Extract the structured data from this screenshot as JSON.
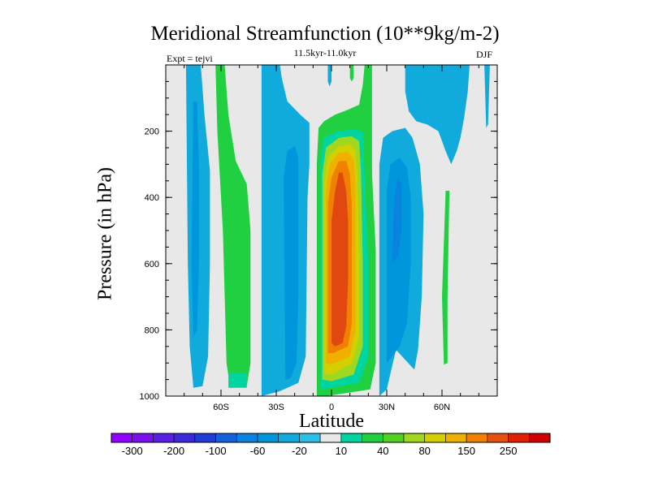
{
  "chart_data": {
    "type": "contour",
    "title": "Meridional Streamfunction (10**9kg/m-2)",
    "subtitle": "11.5kyr-11.0kyr",
    "left_label": "Expt = tejvi",
    "right_label": "DJF",
    "xlabel": "Latitude",
    "ylabel": "Pressure (in hPa)",
    "xlim": [
      -90,
      90
    ],
    "ylim": [
      1000,
      0
    ],
    "xticks": [
      {
        "value": -60,
        "label": "60S"
      },
      {
        "value": -30,
        "label": "30S"
      },
      {
        "value": 0,
        "label": "0"
      },
      {
        "value": 30,
        "label": "30N"
      },
      {
        "value": 60,
        "label": "60N"
      }
    ],
    "yticks": [
      {
        "value": 200,
        "label": "200"
      },
      {
        "value": 400,
        "label": "400"
      },
      {
        "value": 600,
        "label": "600"
      },
      {
        "value": 800,
        "label": "800"
      },
      {
        "value": 1000,
        "label": "1000"
      }
    ],
    "colorbar": {
      "levels": [
        -300,
        -250,
        -200,
        -150,
        -100,
        -80,
        -60,
        -40,
        -20,
        -10,
        10,
        20,
        40,
        60,
        80,
        100,
        150,
        200,
        250,
        300
      ],
      "labels": [
        "-300",
        "-200",
        "-100",
        "-60",
        "-20",
        "10",
        "40",
        "80",
        "150",
        "250"
      ],
      "colors": [
        "#9400ff",
        "#7a10f0",
        "#5a1fe6",
        "#3c28dc",
        "#1e3cd8",
        "#1560dc",
        "#0a82e0",
        "#0096dc",
        "#10aadc",
        "#2cc0e8",
        "#e8e8e8",
        "#00d4a0",
        "#20d040",
        "#50d020",
        "#a0d820",
        "#d4d000",
        "#f0b000",
        "#f08000",
        "#e85010",
        "#e02000",
        "#d00000"
      ]
    },
    "regions": [
      {
        "name": "cell-northern-positive-outer",
        "level": 10,
        "color": "#20d040",
        "points": [
          [
            -8,
            1000
          ],
          [
            -8,
            300
          ],
          [
            -7,
            190
          ],
          [
            -4,
            170
          ],
          [
            2,
            150
          ],
          [
            9,
            135
          ],
          [
            15,
            120
          ],
          [
            17,
            60
          ],
          [
            18,
            0
          ],
          [
            22,
            0
          ],
          [
            22,
            200
          ],
          [
            22,
            330
          ],
          [
            24,
            560
          ],
          [
            24,
            900
          ],
          [
            21,
            980
          ],
          [
            -3,
            1000
          ]
        ]
      },
      {
        "name": "cell-northern-positive-20",
        "level": 20,
        "color": "#00d4a0",
        "points": [
          [
            -6,
            980
          ],
          [
            -6,
            280
          ],
          [
            -4,
            220
          ],
          [
            3,
            200
          ],
          [
            12,
            195
          ],
          [
            17,
            200
          ],
          [
            18,
            330
          ],
          [
            20,
            600
          ],
          [
            20,
            880
          ],
          [
            15,
            960
          ],
          [
            0,
            975
          ]
        ]
      },
      {
        "name": "cell-northern-positive-40",
        "level": 40,
        "color": "#a0d820",
        "points": [
          [
            -5,
            950
          ],
          [
            -5,
            330
          ],
          [
            -3,
            250
          ],
          [
            4,
            220
          ],
          [
            11,
            215
          ],
          [
            15,
            230
          ],
          [
            16,
            320
          ],
          [
            17,
            600
          ],
          [
            17,
            850
          ],
          [
            12,
            935
          ],
          [
            0,
            955
          ]
        ]
      },
      {
        "name": "cell-northern-positive-80",
        "level": 80,
        "color": "#d4d000",
        "points": [
          [
            -4,
            930
          ],
          [
            -4,
            360
          ],
          [
            -2,
            280
          ],
          [
            4,
            245
          ],
          [
            10,
            240
          ],
          [
            13,
            260
          ],
          [
            14,
            330
          ],
          [
            15,
            600
          ],
          [
            15,
            820
          ],
          [
            11,
            900
          ],
          [
            0,
            935
          ]
        ]
      },
      {
        "name": "cell-northern-positive-100",
        "level": 100,
        "color": "#f0b000",
        "points": [
          [
            -3,
            900
          ],
          [
            -3,
            380
          ],
          [
            -1,
            300
          ],
          [
            4,
            265
          ],
          [
            9,
            262
          ],
          [
            12,
            285
          ],
          [
            13,
            360
          ],
          [
            13,
            600
          ],
          [
            13,
            800
          ],
          [
            10,
            880
          ],
          [
            0,
            905
          ]
        ]
      },
      {
        "name": "cell-northern-positive-150",
        "level": 150,
        "color": "#f08000",
        "points": [
          [
            -2,
            870
          ],
          [
            -2,
            420
          ],
          [
            0,
            340
          ],
          [
            4,
            290
          ],
          [
            8,
            290
          ],
          [
            10,
            330
          ],
          [
            11,
            420
          ],
          [
            11,
            600
          ],
          [
            11,
            780
          ],
          [
            9,
            850
          ],
          [
            1,
            870
          ]
        ]
      },
      {
        "name": "cell-northern-positive-250",
        "level": 250,
        "color": "#e04810",
        "points": [
          [
            0,
            840
          ],
          [
            0,
            470
          ],
          [
            2,
            380
          ],
          [
            4,
            325
          ],
          [
            6,
            325
          ],
          [
            8,
            380
          ],
          [
            9,
            470
          ],
          [
            9,
            650
          ],
          [
            8,
            790
          ],
          [
            6,
            840
          ],
          [
            2,
            850
          ]
        ]
      },
      {
        "name": "cell-southern-negative-10",
        "level": -10,
        "color": "#10aadc",
        "points": [
          [
            -38,
            1000
          ],
          [
            -38,
            0
          ],
          [
            -28,
            0
          ],
          [
            -27,
            40
          ],
          [
            -24,
            110
          ],
          [
            -17,
            150
          ],
          [
            -12,
            175
          ],
          [
            -12,
            300
          ],
          [
            -13,
            400
          ],
          [
            -14,
            880
          ],
          [
            -18,
            960
          ],
          [
            -28,
            985
          ]
        ]
      },
      {
        "name": "cell-southern-negative-20",
        "level": -20,
        "color": "#0096dc",
        "points": [
          [
            -25,
            950
          ],
          [
            -26,
            340
          ],
          [
            -24,
            260
          ],
          [
            -20,
            245
          ],
          [
            -18,
            280
          ],
          [
            -18,
            700
          ],
          [
            -19,
            900
          ],
          [
            -22,
            945
          ]
        ]
      },
      {
        "name": "cell-high-south-negative",
        "level": -10,
        "color": "#10aadc",
        "points": [
          [
            -79,
            0
          ],
          [
            -71,
            0
          ],
          [
            -69,
            150
          ],
          [
            -66,
            320
          ],
          [
            -66,
            600
          ],
          [
            -67,
            880
          ],
          [
            -70,
            970
          ],
          [
            -75,
            975
          ],
          [
            -77,
            850
          ],
          [
            -78,
            600
          ]
        ]
      },
      {
        "name": "cell-high-south-negative-core",
        "level": -20,
        "color": "#0096dc",
        "points": [
          [
            -75,
            110
          ],
          [
            -73,
            110
          ],
          [
            -72,
            300
          ],
          [
            -72,
            600
          ],
          [
            -73,
            800
          ],
          [
            -75,
            820
          ],
          [
            -76,
            600
          ]
        ]
      },
      {
        "name": "cell-southern-positive",
        "level": 10,
        "color": "#20d040",
        "points": [
          [
            -63,
            0
          ],
          [
            -58,
            0
          ],
          [
            -56,
            150
          ],
          [
            -52,
            290
          ],
          [
            -46,
            360
          ],
          [
            -44,
            500
          ],
          [
            -44,
            900
          ],
          [
            -46,
            970
          ],
          [
            -55,
            975
          ],
          [
            -57,
            900
          ],
          [
            -59,
            500
          ],
          [
            -62,
            200
          ]
        ]
      },
      {
        "name": "cell-southern-positive-edge",
        "level": 20,
        "color": "#00d4a0",
        "points": [
          [
            -56,
            930
          ],
          [
            -46,
            930
          ],
          [
            -46,
            975
          ],
          [
            -56,
            975
          ]
        ]
      },
      {
        "name": "cell-northern-negative-10",
        "level": -10,
        "color": "#10aadc",
        "points": [
          [
            26,
            1000
          ],
          [
            26,
            300
          ],
          [
            28,
            220
          ],
          [
            33,
            200
          ],
          [
            40,
            190
          ],
          [
            44,
            220
          ],
          [
            48,
            300
          ],
          [
            50,
            450
          ],
          [
            49,
            700
          ],
          [
            47,
            860
          ],
          [
            45,
            920
          ],
          [
            35,
            860
          ],
          [
            30,
            980
          ]
        ]
      },
      {
        "name": "cell-northern-negative-20",
        "level": -20,
        "color": "#0096dc",
        "points": [
          [
            30,
            900
          ],
          [
            30,
            380
          ],
          [
            32,
            300
          ],
          [
            37,
            280
          ],
          [
            41,
            310
          ],
          [
            43,
            400
          ],
          [
            43,
            600
          ],
          [
            41,
            780
          ],
          [
            37,
            850
          ],
          [
            33,
            880
          ]
        ]
      },
      {
        "name": "cell-northern-negative-40",
        "level": -40,
        "color": "#0a82e0",
        "points": [
          [
            33,
            600
          ],
          [
            34,
            400
          ],
          [
            36,
            340
          ],
          [
            38,
            360
          ],
          [
            38,
            500
          ],
          [
            36,
            580
          ]
        ]
      },
      {
        "name": "cell-upper-north-negative",
        "level": -10,
        "color": "#10aadc",
        "points": [
          [
            40,
            0
          ],
          [
            75,
            0
          ],
          [
            74,
            80
          ],
          [
            72,
            160
          ],
          [
            70,
            220
          ],
          [
            68,
            260
          ],
          [
            65,
            300
          ],
          [
            62,
            260
          ],
          [
            58,
            200
          ],
          [
            52,
            180
          ],
          [
            46,
            170
          ],
          [
            42,
            140
          ],
          [
            40,
            80
          ]
        ]
      },
      {
        "name": "cell-high-north-positive",
        "level": 10,
        "color": "#20d040",
        "points": [
          [
            62,
            380
          ],
          [
            64,
            380
          ],
          [
            63,
            700
          ],
          [
            63,
            900
          ],
          [
            61,
            905
          ],
          [
            60,
            700
          ]
        ]
      },
      {
        "name": "cell-pole-north-negative",
        "level": -10,
        "color": "#10aadc",
        "points": [
          [
            83,
            0
          ],
          [
            86,
            0
          ],
          [
            85,
            180
          ],
          [
            84,
            190
          ]
        ]
      },
      {
        "name": "cell-top-equator-negative",
        "level": -10,
        "color": "#10aadc",
        "points": [
          [
            -2,
            0
          ],
          [
            0,
            0
          ],
          [
            0,
            50
          ],
          [
            -1,
            65
          ],
          [
            -2,
            50
          ]
        ]
      },
      {
        "name": "cell-top-equator-positive",
        "level": 10,
        "color": "#20d040",
        "points": [
          [
            10,
            0
          ],
          [
            12,
            0
          ],
          [
            12,
            40
          ],
          [
            11,
            50
          ],
          [
            10,
            40
          ]
        ]
      }
    ]
  }
}
